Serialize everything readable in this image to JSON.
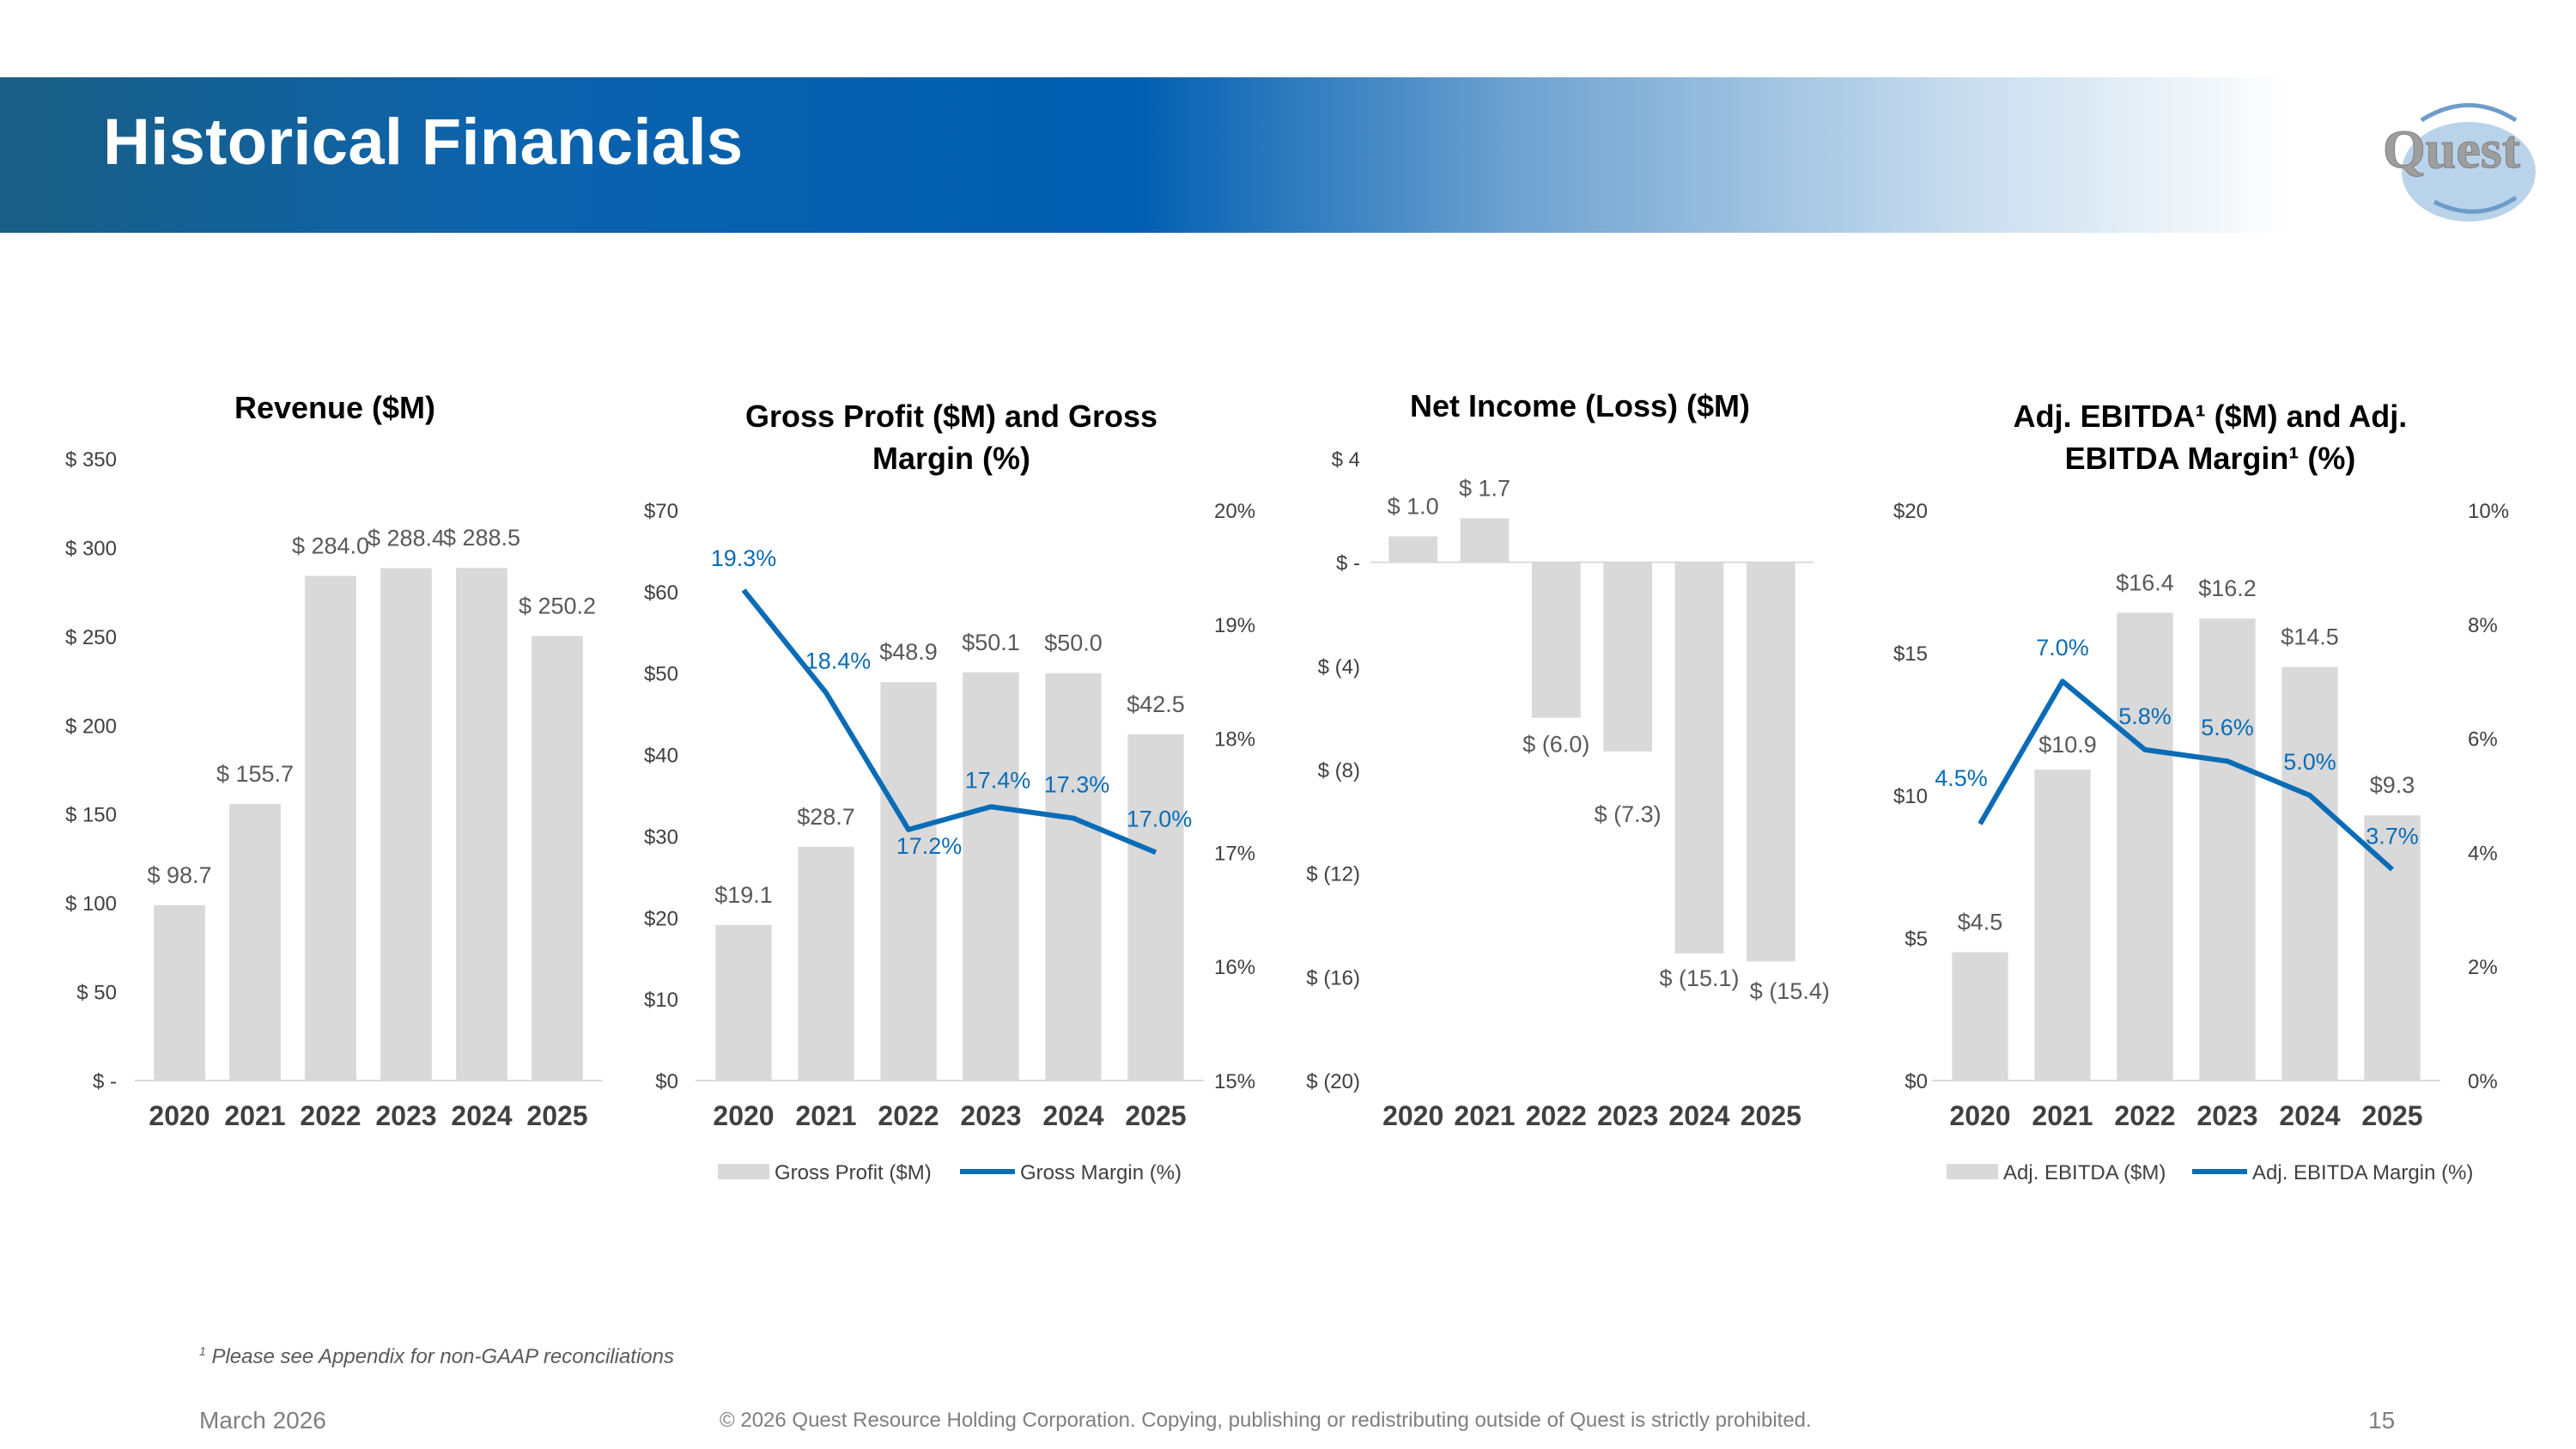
{
  "header": {
    "title": "Historical Financials",
    "logo_text": "Quest"
  },
  "colors": {
    "bar": "#d9d9d9",
    "line": "#0b6cb6",
    "label": "#595959",
    "axis": "#404040"
  },
  "chart_data": [
    {
      "type": "bar",
      "title": "Revenue ($M)",
      "categories": [
        "2020",
        "2021",
        "2022",
        "2023",
        "2024",
        "2025"
      ],
      "values": [
        98.7,
        155.7,
        284.0,
        288.4,
        288.5,
        250.2
      ],
      "value_labels": [
        "$ 98.7",
        "$ 155.7",
        "$ 284.0",
        "$ 288.4",
        "$ 288.5",
        "$ 250.2"
      ],
      "ylim": [
        0,
        350
      ],
      "y_ticks": [
        0,
        50,
        100,
        150,
        200,
        250,
        300,
        350
      ],
      "y_tick_labels": [
        "$ -",
        "$ 50",
        "$ 100",
        "$ 150",
        "$ 200",
        "$ 250",
        "$ 300",
        "$ 350"
      ],
      "legend": []
    },
    {
      "type": "bar",
      "title": "Gross Profit ($M) and Gross Margin (%)",
      "title_lines": [
        "Gross Profit ($M) and Gross",
        "Margin (%)"
      ],
      "categories": [
        "2020",
        "2021",
        "2022",
        "2023",
        "2024",
        "2025"
      ],
      "values": [
        19.1,
        28.7,
        48.9,
        50.1,
        50.0,
        42.5
      ],
      "value_labels": [
        "$19.1",
        "$28.7",
        "$48.9",
        "$50.1",
        "$50.0",
        "$42.5"
      ],
      "ylim": [
        0,
        70
      ],
      "y_ticks": [
        0,
        10,
        20,
        30,
        40,
        50,
        60,
        70
      ],
      "y_tick_labels": [
        "$0",
        "$10",
        "$20",
        "$30",
        "$40",
        "$50",
        "$60",
        "$70"
      ],
      "line": {
        "name": "Gross Margin (%)",
        "values": [
          19.3,
          18.4,
          17.2,
          17.4,
          17.3,
          17.0
        ],
        "labels": [
          "19.3%",
          "18.4%",
          "17.2%",
          "17.4%",
          "17.3%",
          "17.0%"
        ],
        "ylim": [
          15,
          20
        ],
        "y_ticks": [
          15,
          16,
          17,
          18,
          19,
          20
        ],
        "y_tick_labels": [
          "15%",
          "16%",
          "17%",
          "18%",
          "19%",
          "20%"
        ]
      },
      "legend": [
        "Gross Profit ($M)",
        "Gross Margin (%)"
      ]
    },
    {
      "type": "bar",
      "title": "Net Income (Loss) ($M)",
      "categories": [
        "2020",
        "2021",
        "2022",
        "2023",
        "2024",
        "2025"
      ],
      "values": [
        1.0,
        1.7,
        -6.0,
        -7.3,
        -15.1,
        -15.4
      ],
      "value_labels": [
        "$ 1.0",
        "$ 1.7",
        "$ (6.0)",
        "$ (7.3)",
        "$ (15.1)",
        "$ (15.4)"
      ],
      "ylim": [
        -20,
        4
      ],
      "y_ticks": [
        4,
        0,
        -4,
        -8,
        -12,
        -16,
        -20
      ],
      "y_tick_labels": [
        "$ 4",
        "$ -",
        "$ (4)",
        "$ (8)",
        "$ (12)",
        "$ (16)",
        "$ (20)"
      ],
      "legend": []
    },
    {
      "type": "bar",
      "title": "Adj. EBITDA¹ ($M) and Adj. EBITDA Margin¹ (%)",
      "title_lines": [
        "Adj. EBITDA¹ ($M) and Adj.",
        "EBITDA Margin¹ (%)"
      ],
      "categories": [
        "2020",
        "2021",
        "2022",
        "2023",
        "2024",
        "2025"
      ],
      "values": [
        4.5,
        10.9,
        16.4,
        16.2,
        14.5,
        9.3
      ],
      "value_labels": [
        "$4.5",
        "$10.9",
        "$16.4",
        "$16.2",
        "$14.5",
        "$9.3"
      ],
      "ylim": [
        0,
        20
      ],
      "y_ticks": [
        0,
        5,
        10,
        15,
        20
      ],
      "y_tick_labels": [
        "$0",
        "$5",
        "$10",
        "$15",
        "$20"
      ],
      "line": {
        "name": "Adj. EBITDA Margin (%)",
        "values": [
          4.5,
          7.0,
          5.8,
          5.6,
          5.0,
          3.7
        ],
        "labels": [
          "4.5%",
          "7.0%",
          "5.8%",
          "5.6%",
          "5.0%",
          "3.7%"
        ],
        "ylim": [
          0,
          10
        ],
        "y_ticks": [
          0,
          2,
          4,
          6,
          8,
          10
        ],
        "y_tick_labels": [
          "0%",
          "2%",
          "4%",
          "6%",
          "8%",
          "10%"
        ]
      },
      "legend": [
        "Adj. EBITDA ($M)",
        "Adj. EBITDA Margin (%)"
      ]
    }
  ],
  "footer": {
    "footnote_mark": "1",
    "footnote": " Please see Appendix for non-GAAP reconciliations",
    "date": "March 2026",
    "copyright": "© 2026 Quest Resource Holding Corporation.  Copying, publishing or redistributing outside of Quest is strictly prohibited.",
    "page": "15"
  }
}
